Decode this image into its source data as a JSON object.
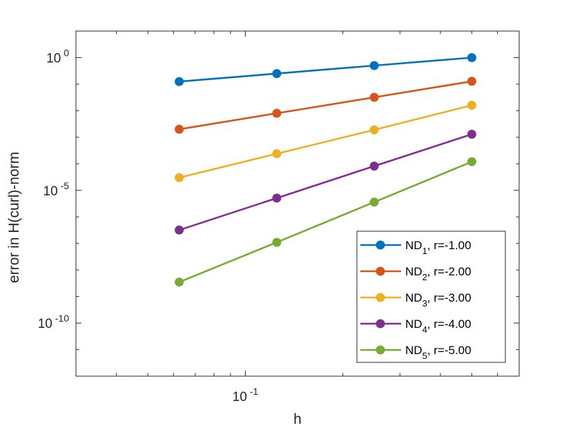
{
  "chart_data": {
    "type": "line",
    "title": "",
    "xlabel": "h",
    "ylabel": "error in H(curl)-norm",
    "xscale": "log",
    "yscale": "log",
    "xlim": [
      0.03,
      0.7
    ],
    "ylim": [
      1e-12,
      10.0
    ],
    "x": [
      0.0625,
      0.125,
      0.25,
      0.5
    ],
    "x_ticks": [
      {
        "base": "10",
        "exp": "-1"
      }
    ],
    "y_ticks": [
      {
        "base": "10",
        "exp": "0"
      },
      {
        "base": "10",
        "exp": "-5"
      },
      {
        "base": "10",
        "exp": "-10"
      }
    ],
    "legend_position": "bottom-right",
    "series": [
      {
        "name": "ND",
        "sub": "1",
        "rate": ", r=-1.00",
        "color": "#0072BD",
        "values": [
          0.125,
          0.25,
          0.5,
          1.0
        ]
      },
      {
        "name": "ND",
        "sub": "2",
        "rate": ", r=-2.00",
        "color": "#D95319",
        "values": [
          0.002,
          0.008,
          0.032,
          0.128
        ]
      },
      {
        "name": "ND",
        "sub": "3",
        "rate": ", r=-3.00",
        "color": "#EDB120",
        "values": [
          3e-05,
          0.00024,
          0.0019,
          0.016
        ]
      },
      {
        "name": "ND",
        "sub": "4",
        "rate": ", r=-4.00",
        "color": "#7E2F8E",
        "values": [
          3.2e-07,
          5.1e-06,
          8.2e-05,
          0.0013
        ]
      },
      {
        "name": "ND",
        "sub": "5",
        "rate": ", r=-5.00",
        "color": "#77AC30",
        "values": [
          3.5e-09,
          1.1e-07,
          3.6e-06,
          0.00012
        ]
      }
    ]
  }
}
